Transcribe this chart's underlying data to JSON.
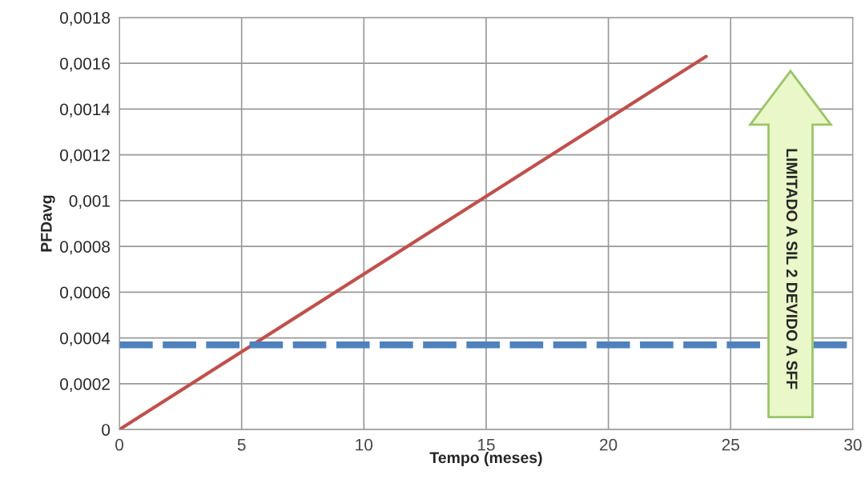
{
  "chart_data": {
    "type": "line",
    "xlabel": "Tempo (meses)",
    "ylabel": "PFDavg",
    "series": [
      {
        "color": "#c0504d",
        "x": [
          0,
          24
        ],
        "values": [
          0,
          0.00163
        ]
      }
    ],
    "xlim": [
      0,
      30
    ],
    "xticks": [
      0,
      5,
      10,
      15,
      20,
      25,
      30
    ],
    "ylim": [
      0,
      0.0018
    ],
    "yticks": [
      0,
      {
        "value": 0.0002,
        "label": "0,0002"
      },
      {
        "value": 0.0004,
        "label": "0,0004"
      },
      {
        "value": 0.0006,
        "label": "0,0006"
      },
      {
        "value": 0.0008,
        "label": "0,0008"
      },
      {
        "value": 0.001,
        "label": "0,001"
      },
      {
        "value": 0.0012,
        "label": "0,0012"
      },
      {
        "value": 0.0014,
        "label": "0,0014"
      },
      {
        "value": 0.0016,
        "label": "0,0016"
      },
      {
        "value": 0.0018,
        "label": "0,0018"
      }
    ],
    "ref_lines": [
      {
        "axis": "y",
        "value": 0.00037,
        "color": "#4f81bd",
        "line_style": "dashed"
      }
    ],
    "annotations": [
      "LIMITADO A SIL 2 DEVIDO A SFF"
    ],
    "grid": true,
    "legend": false,
    "marker": "none",
    "line_style": "solid"
  }
}
